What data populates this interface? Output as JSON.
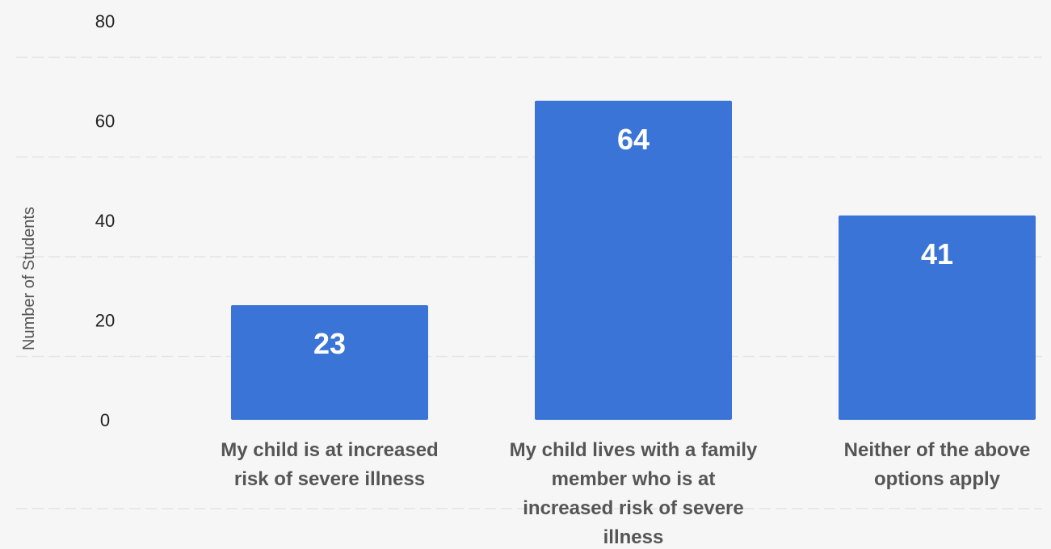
{
  "chart_data": {
    "type": "bar",
    "categories": [
      "My child is at increased risk of severe illness",
      "My child lives with a family member who is at increased risk of severe illness",
      "Neither of the above options apply"
    ],
    "category_lines": [
      [
        "My child is at increased",
        "risk of severe illness"
      ],
      [
        "My child lives with a family",
        "member who is at",
        "increased risk of severe",
        "illness"
      ],
      [
        "Neither of the above",
        "options apply"
      ]
    ],
    "values": [
      23,
      64,
      41
    ],
    "data_labels": [
      "23",
      "64",
      "41"
    ],
    "title": "",
    "xlabel": "",
    "ylabel": "Number of Students",
    "ylim": [
      0,
      80
    ],
    "yticks": [
      0,
      20,
      40,
      60,
      80
    ],
    "grid": true,
    "legend": "none",
    "colors": {
      "bar": "#3a74d6",
      "background": "#f6f6f6",
      "grid": "#e4e4e4",
      "data_label": "#ffffff"
    }
  }
}
